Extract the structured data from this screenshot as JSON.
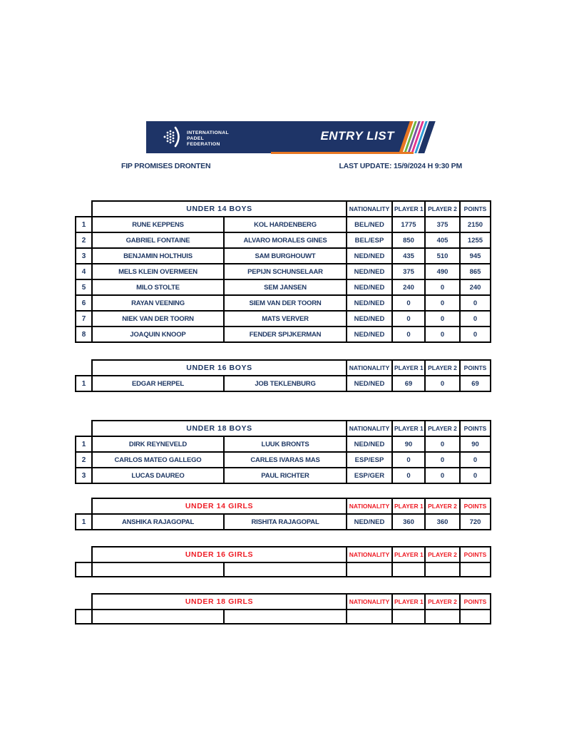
{
  "header": {
    "logo_lines": [
      "INTERNATIONAL",
      "PADEL",
      "FEDERATION"
    ],
    "banner_title": "ENTRY LIST",
    "event_name": "FIP PROMISES DRONTEN",
    "last_update": "LAST UPDATE: 15/9/2024 H 9:30 PM",
    "banner_color": "#1e3467",
    "accent_orange": "#e87722",
    "stripe_colors": [
      "#e87722",
      "#6cb33f",
      "#7c51a1",
      "#e5338d",
      "#2e9bd6",
      "#1e3467"
    ],
    "stripe_widths": [
      5,
      3,
      3,
      3,
      3,
      9
    ]
  },
  "columns": {
    "nationality": "NATIONALITY",
    "player1": "PLAYER 1",
    "player2": "PLAYER 2",
    "points": "POINTS"
  },
  "colors": {
    "navy": "#1f3864",
    "red": "#ee1c25",
    "border": "#000000"
  },
  "tables": [
    {
      "slug": "under-14-boys",
      "title": "UNDER 14 BOYS",
      "theme": "navy",
      "gap": "gap-a",
      "rows": [
        {
          "num": "1",
          "p1": "RUNE KEPPENS",
          "p2": "KOL HARDENBERG",
          "nat": "BEL/NED",
          "pts1": "1775",
          "pts2": "375",
          "total": "2150"
        },
        {
          "num": "2",
          "p1": "GABRIEL FONTAINE",
          "p2": "ALVARO MORALES GINES",
          "nat": "BEL/ESP",
          "pts1": "850",
          "pts2": "405",
          "total": "1255"
        },
        {
          "num": "3",
          "p1": "BENJAMIN HOLTHUIS",
          "p2": "SAM BURGHOUWT",
          "nat": "NED/NED",
          "pts1": "435",
          "pts2": "510",
          "total": "945"
        },
        {
          "num": "4",
          "p1": "MELS KLEIN OVERMEEN",
          "p2": "PEPIJN SCHUNSELAAR",
          "nat": "NED/NED",
          "pts1": "375",
          "pts2": "490",
          "total": "865"
        },
        {
          "num": "5",
          "p1": "MILO STOLTE",
          "p2": "SEM JANSEN",
          "nat": "NED/NED",
          "pts1": "240",
          "pts2": "0",
          "total": "240"
        },
        {
          "num": "6",
          "p1": "RAYAN VEENING",
          "p2": "SIEM VAN DER TOORN",
          "nat": "NED/NED",
          "pts1": "0",
          "pts2": "0",
          "total": "0"
        },
        {
          "num": "7",
          "p1": "NIEK VAN DER TOORN",
          "p2": "MATS VERVER",
          "nat": "NED/NED",
          "pts1": "0",
          "pts2": "0",
          "total": "0"
        },
        {
          "num": "8",
          "p1": "JOAQUIN KNOOP",
          "p2": "FENDER SPIJKERMAN",
          "nat": "NED/NED",
          "pts1": "0",
          "pts2": "0",
          "total": "0"
        }
      ]
    },
    {
      "slug": "under-16-boys",
      "title": "UNDER 16 BOYS",
      "theme": "navy",
      "gap": "gap-b",
      "rows": [
        {
          "num": "1",
          "p1": "EDGAR HERPEL",
          "p2": "JOB TEKLENBURG",
          "nat": "NED/NED",
          "pts1": "69",
          "pts2": "0",
          "total": "69"
        }
      ]
    },
    {
      "slug": "under-18-boys",
      "title": "UNDER 18 BOYS",
      "theme": "navy",
      "gap": "gap-c",
      "rows": [
        {
          "num": "1",
          "p1": "DIRK REYNEVELD",
          "p2": "LUUK BRONTS",
          "nat": "NED/NED",
          "pts1": "90",
          "pts2": "0",
          "total": "90"
        },
        {
          "num": "2",
          "p1": "CARLOS MATEO GALLEGO",
          "p2": "CARLES IVARAS MAS",
          "nat": "ESP/ESP",
          "pts1": "0",
          "pts2": "0",
          "total": "0"
        },
        {
          "num": "3",
          "p1": "LUCAS DAUREO",
          "p2": "PAUL RICHTER",
          "nat": "ESP/GER",
          "pts1": "0",
          "pts2": "0",
          "total": "0"
        }
      ]
    },
    {
      "slug": "under-14-girls",
      "title": "UNDER 14 GIRLS",
      "theme": "red",
      "gap": "gap-d",
      "rows": [
        {
          "num": "1",
          "p1": "ANSHIKA RAJAGOPAL",
          "p2": "RISHITA RAJAGOPAL",
          "nat": "NED/NED",
          "pts1": "360",
          "pts2": "360",
          "total": "720"
        }
      ]
    },
    {
      "slug": "under-16-girls",
      "title": "UNDER 16 GIRLS",
      "theme": "red",
      "gap": "gap-e",
      "rows": [
        {
          "num": "",
          "p1": "",
          "p2": "",
          "nat": "",
          "pts1": "",
          "pts2": "",
          "total": ""
        }
      ]
    },
    {
      "slug": "under-18-girls",
      "title": "UNDER 18 GIRLS",
      "theme": "red",
      "gap": "",
      "rows": [
        {
          "num": "",
          "p1": "",
          "p2": "",
          "nat": "",
          "pts1": "",
          "pts2": "",
          "total": ""
        }
      ]
    }
  ]
}
